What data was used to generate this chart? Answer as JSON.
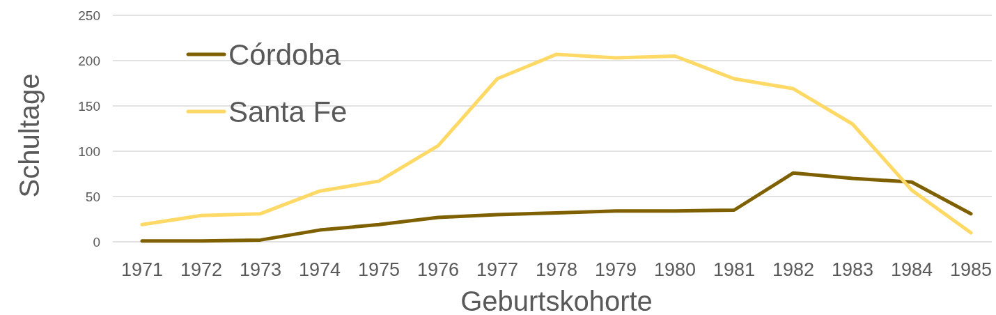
{
  "chart_data": {
    "type": "line",
    "xlabel": "Geburtskohorte",
    "ylabel": "Schultage",
    "categories": [
      "1971",
      "1972",
      "1973",
      "1974",
      "1975",
      "1976",
      "1977",
      "1978",
      "1979",
      "1980",
      "1981",
      "1982",
      "1983",
      "1984",
      "1985"
    ],
    "series": [
      {
        "name": "Córdoba",
        "color": "#7f6000",
        "values": [
          1,
          1,
          2,
          13,
          19,
          27,
          30,
          32,
          34,
          34,
          35,
          76,
          70,
          66,
          31
        ]
      },
      {
        "name": "Santa Fe",
        "color": "#ffd966",
        "values": [
          19,
          29,
          31,
          56,
          67,
          106,
          180,
          207,
          203,
          205,
          180,
          169,
          130,
          57,
          10
        ]
      }
    ],
    "ylim": [
      0,
      250
    ],
    "yticks": [
      0,
      50,
      100,
      150,
      200,
      250
    ],
    "grid": "y",
    "legend": "top left",
    "marker": "none",
    "line_style": "solid"
  }
}
